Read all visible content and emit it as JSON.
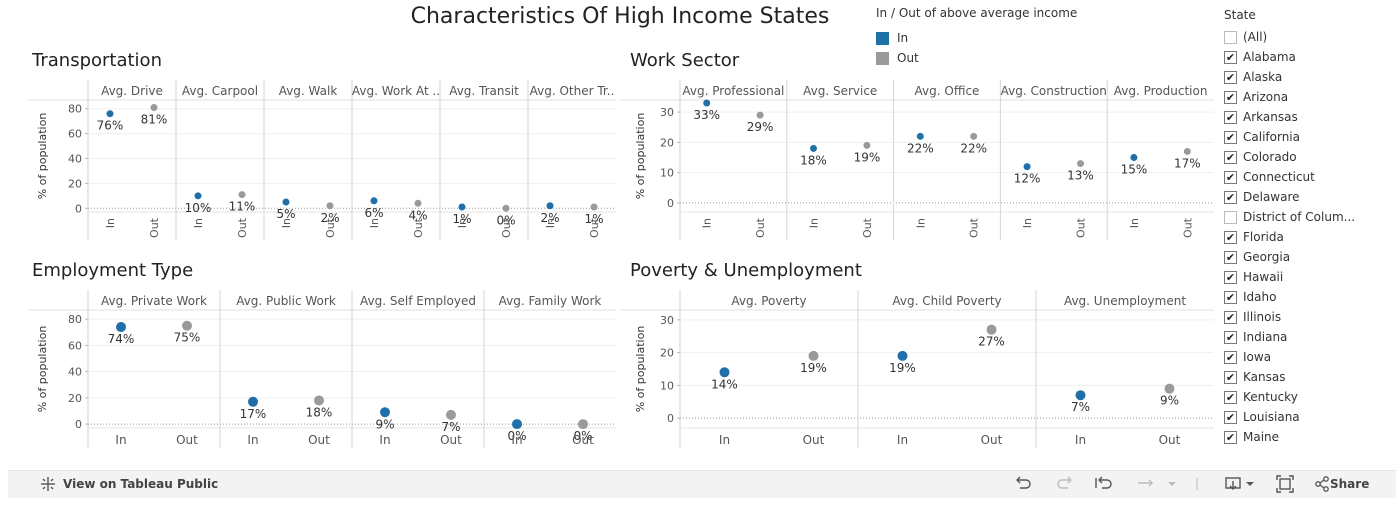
{
  "title": "Characteristics Of High Income States",
  "legend": {
    "title": "In / Out of above average income",
    "items": [
      {
        "label": "In",
        "color": "#1f6fa8"
      },
      {
        "label": "Out",
        "color": "#9a9a9a"
      }
    ]
  },
  "state_filter": {
    "title": "State",
    "items": [
      {
        "label": "(All)",
        "checked": false
      },
      {
        "label": "Alabama",
        "checked": true
      },
      {
        "label": "Alaska",
        "checked": true
      },
      {
        "label": "Arizona",
        "checked": true
      },
      {
        "label": "Arkansas",
        "checked": true
      },
      {
        "label": "California",
        "checked": true
      },
      {
        "label": "Colorado",
        "checked": true
      },
      {
        "label": "Connecticut",
        "checked": true
      },
      {
        "label": "Delaware",
        "checked": true
      },
      {
        "label": "District of Colum...",
        "checked": false
      },
      {
        "label": "Florida",
        "checked": true
      },
      {
        "label": "Georgia",
        "checked": true
      },
      {
        "label": "Hawaii",
        "checked": true
      },
      {
        "label": "Idaho",
        "checked": true
      },
      {
        "label": "Illinois",
        "checked": true
      },
      {
        "label": "Indiana",
        "checked": true
      },
      {
        "label": "Iowa",
        "checked": true
      },
      {
        "label": "Kansas",
        "checked": true
      },
      {
        "label": "Kentucky",
        "checked": true
      },
      {
        "label": "Louisiana",
        "checked": true
      },
      {
        "label": "Maine",
        "checked": true
      }
    ]
  },
  "footer": {
    "view_label": "View on Tableau Public",
    "share_label": "Share"
  },
  "chart_data": [
    {
      "type": "scatter",
      "title": "Transportation",
      "ylabel": "% of population",
      "ylim": [
        -3,
        87
      ],
      "yticks": [
        0,
        20,
        40,
        60,
        80
      ],
      "x_labels_rotated": true,
      "categories": [
        "In",
        "Out"
      ],
      "panels": [
        {
          "label": "Avg. Drive",
          "values": [
            76,
            81
          ],
          "labels": [
            "76%",
            "81%"
          ]
        },
        {
          "label": "Avg. Carpool",
          "values": [
            10,
            11
          ],
          "labels": [
            "10%",
            "11%"
          ]
        },
        {
          "label": "Avg. Walk",
          "values": [
            5,
            2
          ],
          "labels": [
            "5%",
            "2%"
          ]
        },
        {
          "label": "Avg. Work At ..",
          "values": [
            6,
            4
          ],
          "labels": [
            "6%",
            "4%"
          ]
        },
        {
          "label": "Avg. Transit",
          "values": [
            1,
            0
          ],
          "labels": [
            "1%",
            "0%"
          ]
        },
        {
          "label": "Avg. Other Tr..",
          "values": [
            2,
            1
          ],
          "labels": [
            "2%",
            "1%"
          ]
        }
      ]
    },
    {
      "type": "scatter",
      "title": "Work Sector",
      "ylabel": "% of population",
      "ylim": [
        -3,
        34
      ],
      "yticks": [
        0,
        10,
        20,
        30
      ],
      "x_labels_rotated": true,
      "categories": [
        "In",
        "Out"
      ],
      "panels": [
        {
          "label": "Avg. Professional",
          "values": [
            33,
            29
          ],
          "labels": [
            "33%",
            "29%"
          ]
        },
        {
          "label": "Avg. Service",
          "values": [
            18,
            19
          ],
          "labels": [
            "18%",
            "19%"
          ]
        },
        {
          "label": "Avg. Office",
          "values": [
            22,
            22
          ],
          "labels": [
            "22%",
            "22%"
          ]
        },
        {
          "label": "Avg. Construction",
          "values": [
            12,
            13
          ],
          "labels": [
            "12%",
            "13%"
          ]
        },
        {
          "label": "Avg. Production",
          "values": [
            15,
            17
          ],
          "labels": [
            "15%",
            "17%"
          ]
        }
      ]
    },
    {
      "type": "scatter",
      "title": "Employment Type",
      "ylabel": "% of population",
      "ylim": [
        -3,
        87
      ],
      "yticks": [
        0,
        20,
        40,
        60,
        80
      ],
      "x_labels_rotated": false,
      "categories": [
        "In",
        "Out"
      ],
      "panels": [
        {
          "label": "Avg. Private Work",
          "values": [
            74,
            75
          ],
          "labels": [
            "74%",
            "75%"
          ]
        },
        {
          "label": "Avg. Public Work",
          "values": [
            17,
            18
          ],
          "labels": [
            "17%",
            "18%"
          ]
        },
        {
          "label": "Avg. Self Employed",
          "values": [
            9,
            7
          ],
          "labels": [
            "9%",
            "7%"
          ]
        },
        {
          "label": "Avg. Family Work",
          "values": [
            0,
            0
          ],
          "labels": [
            "0%",
            "0%"
          ]
        }
      ]
    },
    {
      "type": "scatter",
      "title": "Poverty & Unemployment",
      "ylabel": "% of population",
      "ylim": [
        -3,
        33
      ],
      "yticks": [
        0,
        10,
        20,
        30
      ],
      "x_labels_rotated": false,
      "categories": [
        "In",
        "Out"
      ],
      "panels": [
        {
          "label": "Avg. Poverty",
          "values": [
            14,
            19
          ],
          "labels": [
            "14%",
            "19%"
          ]
        },
        {
          "label": "Avg. Child Poverty",
          "values": [
            19,
            27
          ],
          "labels": [
            "19%",
            "27%"
          ]
        },
        {
          "label": "Avg. Unemployment",
          "values": [
            7,
            9
          ],
          "labels": [
            "7%",
            "9%"
          ]
        }
      ]
    }
  ]
}
